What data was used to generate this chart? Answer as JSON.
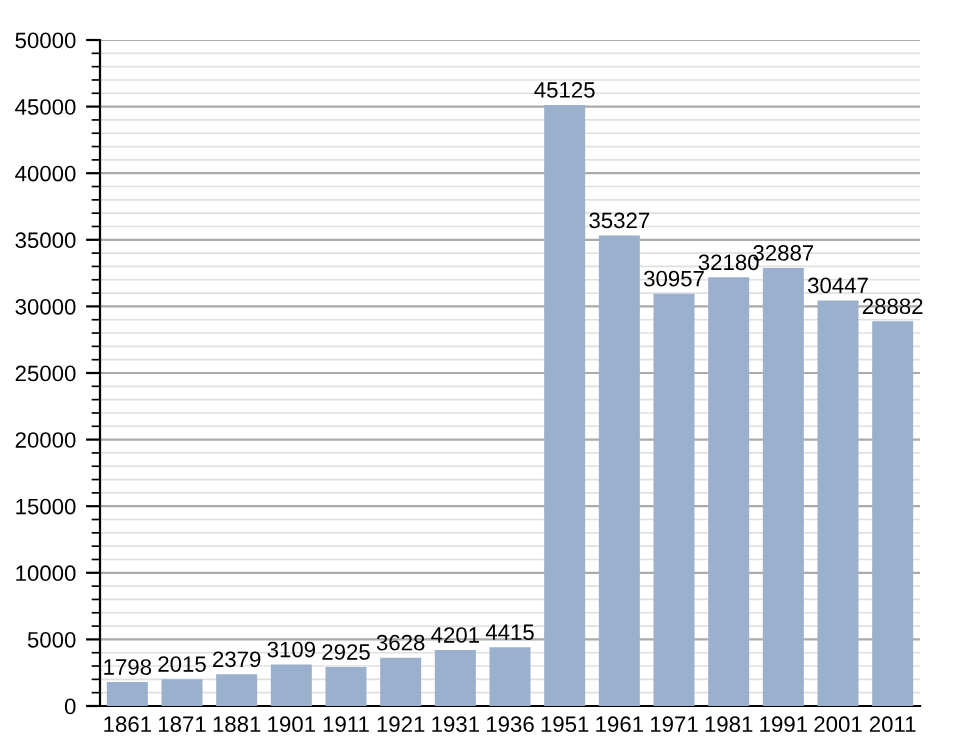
{
  "chart_data": {
    "type": "bar",
    "categories": [
      "1861",
      "1871",
      "1881",
      "1901",
      "1911",
      "1921",
      "1931",
      "1936",
      "1951",
      "1961",
      "1971",
      "1981",
      "1991",
      "2001",
      "2011"
    ],
    "values": [
      1798,
      2015,
      2379,
      3109,
      2925,
      3628,
      4201,
      4415,
      45125,
      35327,
      30957,
      32180,
      32887,
      30447,
      28882
    ],
    "color": "#9ab0cc",
    "ylim": [
      0,
      50000
    ],
    "yticks": [
      0,
      5000,
      10000,
      15000,
      20000,
      25000,
      30000,
      35000,
      40000,
      45000,
      50000
    ],
    "grid": "y",
    "data_labels": true
  }
}
